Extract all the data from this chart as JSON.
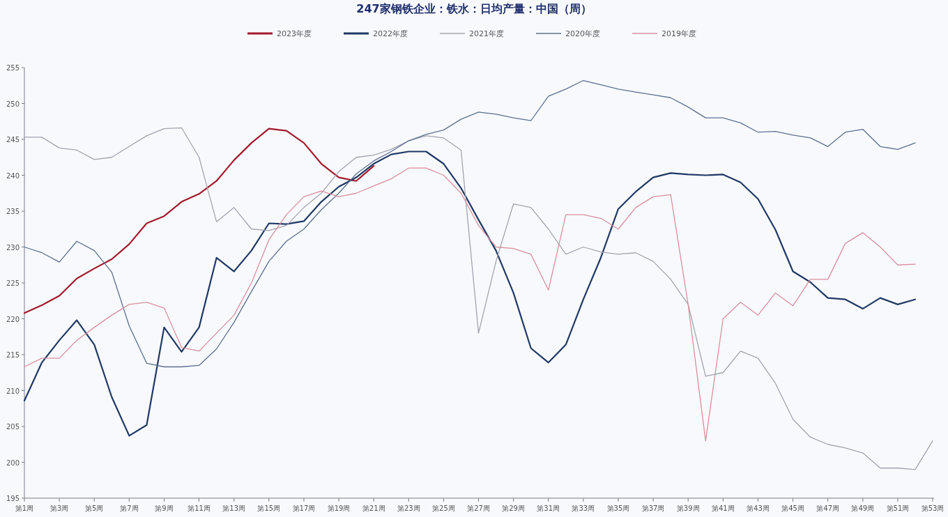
{
  "chart_data": {
    "type": "line",
    "title": "247家钢铁企业：铁水：日均产量：中国（周）",
    "categories": [
      "第1周",
      null,
      "第3周",
      null,
      "第5周",
      null,
      "第7周",
      null,
      "第9周",
      null,
      "第11周",
      null,
      "第13周",
      null,
      "第15周",
      null,
      "第17周",
      null,
      "第19周",
      null,
      "第21周",
      null,
      "第23周",
      null,
      "第25周",
      null,
      "第27周",
      null,
      "第29周",
      null,
      "第31周",
      null,
      "第33周",
      null,
      "第35周",
      null,
      "第37周",
      null,
      "第39周",
      null,
      "第41周",
      null,
      "第43周",
      null,
      "第45周",
      null,
      "第47周",
      null,
      "第49周",
      null,
      "第51周",
      null,
      "第53周"
    ],
    "series": [
      {
        "name": "2023年度",
        "color": "#a31a2a",
        "values": [
          220.8,
          221.9,
          223.2,
          225.6,
          227.0,
          228.3,
          230.4,
          233.3,
          234.3,
          236.3,
          237.4,
          239.2,
          242.1,
          244.5,
          246.5,
          246.2,
          244.5,
          241.6,
          239.7,
          239.2,
          241.3,
          null,
          null,
          null,
          null,
          null,
          null,
          null,
          null,
          null,
          null,
          null,
          null,
          null,
          null,
          null,
          null,
          null,
          null,
          null,
          null,
          null,
          null,
          null,
          null,
          null,
          null,
          null,
          null,
          null,
          null,
          null,
          null
        ]
      },
      {
        "name": "2022年度",
        "color": "#1f3864",
        "values": [
          208.6,
          213.9,
          217.0,
          219.8,
          216.4,
          209.1,
          203.7,
          205.2,
          218.8,
          215.4,
          218.8,
          228.5,
          226.6,
          229.5,
          233.3,
          233.2,
          233.6,
          236.3,
          238.4,
          239.7,
          241.6,
          242.9,
          243.3,
          243.3,
          241.6,
          238.2,
          233.8,
          229.5,
          223.6,
          215.9,
          213.9,
          216.4,
          222.7,
          228.5,
          235.3,
          237.7,
          239.7,
          240.3,
          240.1,
          240.0,
          240.1,
          239.0,
          236.7,
          232.4,
          226.6,
          225.1,
          222.9,
          222.7,
          221.4,
          222.9,
          222.0,
          222.7,
          null
        ]
      },
      {
        "name": "2021年度",
        "color": "#a3a3b0",
        "values": [
          245.3,
          245.3,
          243.8,
          243.5,
          242.2,
          242.5,
          244.0,
          245.5,
          246.5,
          246.6,
          242.5,
          233.5,
          235.5,
          232.5,
          232.3,
          233.0,
          235.5,
          237.5,
          240.5,
          242.5,
          242.8,
          243.6,
          244.8,
          245.5,
          245.2,
          243.5,
          218.0,
          228.0,
          236.0,
          235.5,
          232.5,
          229.0,
          230.0,
          229.3,
          229.0,
          229.2,
          228.0,
          225.5,
          222.0,
          212.0,
          212.5,
          215.5,
          214.5,
          211.0,
          206.0,
          203.5,
          202.5,
          202.0,
          201.3,
          199.2,
          199.2,
          199.0,
          203.0
        ]
      },
      {
        "name": "2020年度",
        "color": "#5b7090",
        "values": [
          230.0,
          229.2,
          227.9,
          230.8,
          229.5,
          226.5,
          219.0,
          213.8,
          213.3,
          213.3,
          213.5,
          215.8,
          219.5,
          223.8,
          228.0,
          230.8,
          232.5,
          235.2,
          237.5,
          240.2,
          242.0,
          243.3,
          244.8,
          245.7,
          246.3,
          247.8,
          248.8,
          248.5,
          248.0,
          247.6,
          251.0,
          252.0,
          253.2,
          252.6,
          252.0,
          251.6,
          251.2,
          250.8,
          249.5,
          248.0,
          248.0,
          247.3,
          246.0,
          246.1,
          245.6,
          245.2,
          244.0,
          246.0,
          246.4,
          244.0,
          243.6,
          244.5,
          null
        ]
      },
      {
        "name": "2019年度",
        "color": "#d9909a",
        "values": [
          213.3,
          214.5,
          214.5,
          217.0,
          218.8,
          220.5,
          222.0,
          222.3,
          221.5,
          216.0,
          215.5,
          218.0,
          220.5,
          225.0,
          231.0,
          234.5,
          237.0,
          237.8,
          237.0,
          237.5,
          238.5,
          239.5,
          241.0,
          241.0,
          240.0,
          237.5,
          233.0,
          230.0,
          229.8,
          229.0,
          224.0,
          234.5,
          234.5,
          234.0,
          232.5,
          235.5,
          237.0,
          237.3,
          222.0,
          203.0,
          220.0,
          222.3,
          220.5,
          223.6,
          221.8,
          225.5,
          225.5,
          230.5,
          232.0,
          230.0,
          227.5,
          227.6,
          null
        ]
      }
    ],
    "ylim": [
      195,
      255
    ],
    "yticks": [
      195,
      200,
      205,
      210,
      215,
      220,
      225,
      230,
      235,
      240,
      245,
      250,
      255
    ],
    "legend": "top",
    "grid": false,
    "marker": "none",
    "line_style": "solid"
  }
}
